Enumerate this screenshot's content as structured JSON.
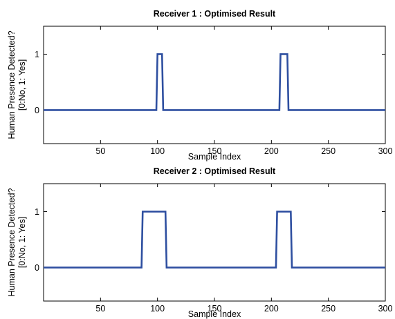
{
  "chart_data": [
    {
      "type": "line",
      "title": "Receiver 1 : Optimised Result",
      "xlabel": "Sample Index",
      "ylabel_line1": "Human Presence Detected?",
      "ylabel_line2": "[0:No, 1: Yes]",
      "xlim": [
        0,
        300
      ],
      "ylim": [
        -0.6,
        1.5
      ],
      "xticks": [
        50,
        100,
        150,
        200,
        250,
        300
      ],
      "yticks": [
        0,
        1
      ],
      "grid": false,
      "color": "#2e4fa0",
      "series": [
        {
          "x": [
            0,
            99,
            100,
            104,
            105,
            207,
            208,
            214,
            215,
            300
          ],
          "y": [
            0,
            0,
            1,
            1,
            0,
            0,
            1,
            1,
            0,
            0
          ]
        }
      ]
    },
    {
      "type": "line",
      "title": "Receiver 2 : Optimised Result",
      "xlabel": "Sample Index",
      "ylabel_line1": "Human Presence Detected?",
      "ylabel_line2": "[0:No, 1: Yes]",
      "xlim": [
        0,
        300
      ],
      "ylim": [
        -0.6,
        1.5
      ],
      "xticks": [
        50,
        100,
        150,
        200,
        250,
        300
      ],
      "yticks": [
        0,
        1
      ],
      "grid": false,
      "color": "#2e4fa0",
      "series": [
        {
          "x": [
            0,
            86,
            87,
            107,
            108,
            204,
            205,
            217,
            218,
            300
          ],
          "y": [
            0,
            0,
            1,
            1,
            0,
            0,
            1,
            1,
            0,
            0
          ]
        }
      ]
    }
  ]
}
